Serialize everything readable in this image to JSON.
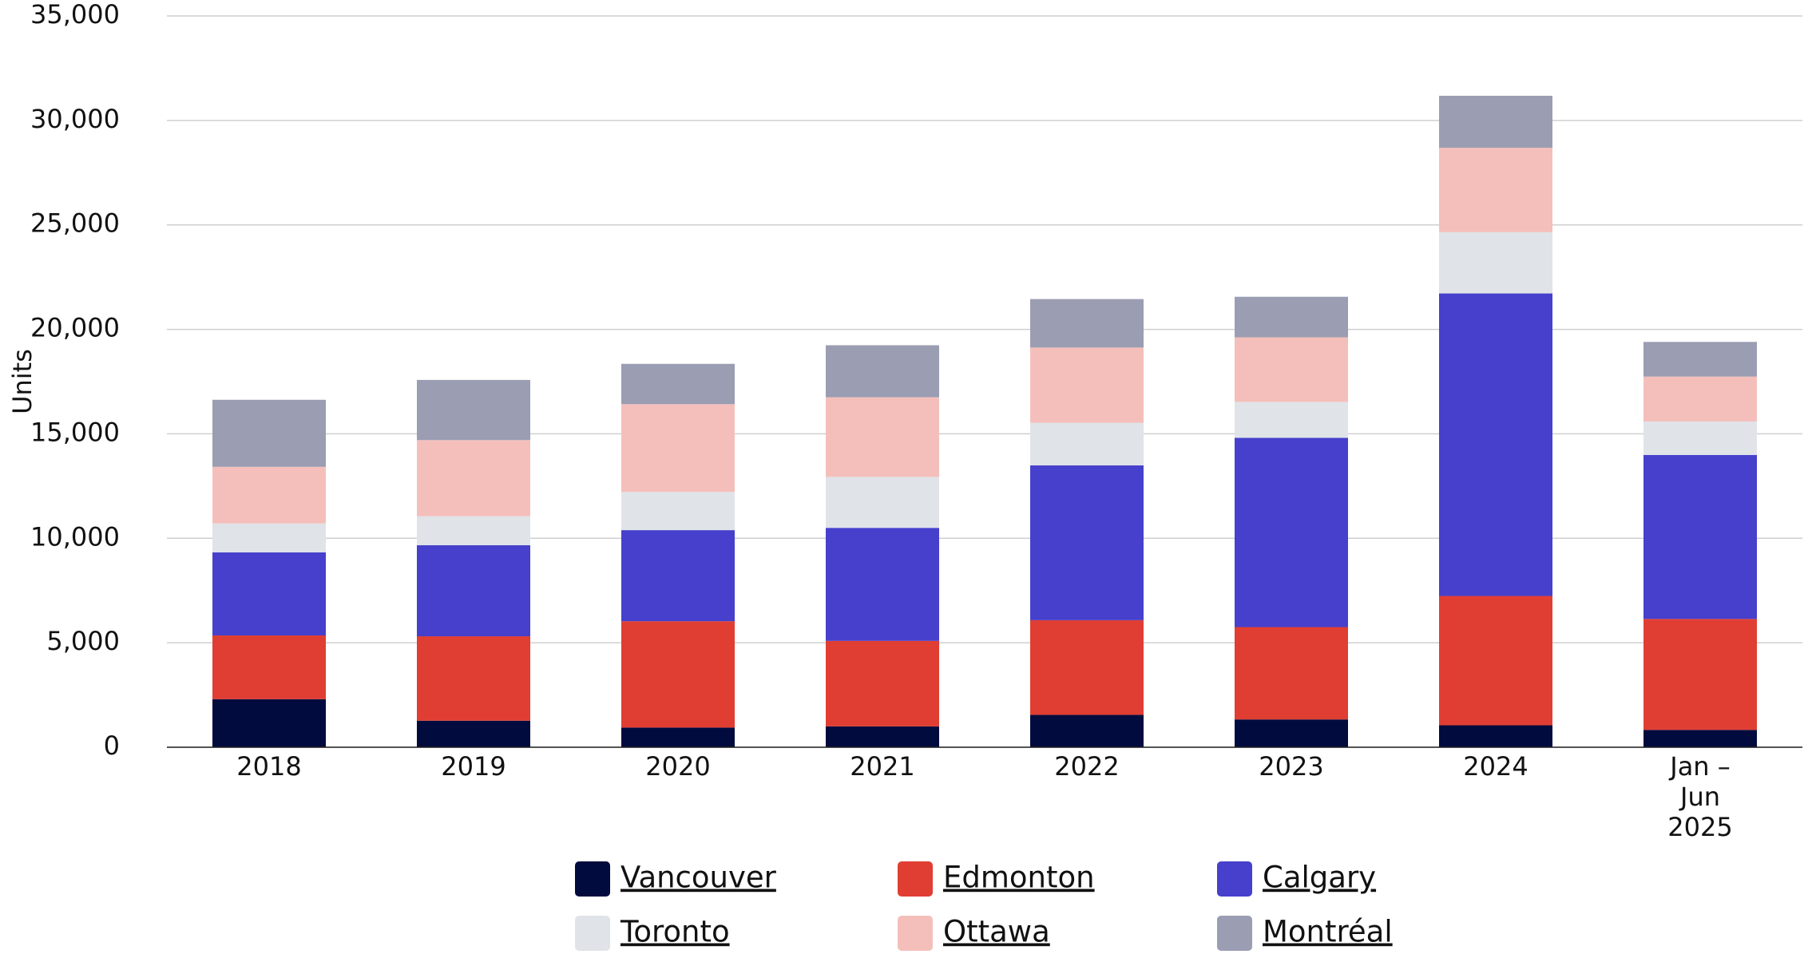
{
  "chart_data": {
    "type": "stacked_bar",
    "y_label": "Units",
    "categories": [
      "2018",
      "2019",
      "2020",
      "2021",
      "2022",
      "2023",
      "2024",
      "Jan – Jun 2025"
    ],
    "series": [
      {
        "name": "Vancouver",
        "color": "#020b3d",
        "values": [
          2300,
          1270,
          940,
          1000,
          1550,
          1330,
          1050,
          830
        ]
      },
      {
        "name": "Edmonton",
        "color": "#e03e33",
        "values": [
          3050,
          4040,
          5090,
          4090,
          4530,
          4420,
          6190,
          5310
        ]
      },
      {
        "name": "Calgary",
        "color": "#4640cc",
        "values": [
          3980,
          4360,
          4360,
          5410,
          7410,
          9060,
          14480,
          7850
        ]
      },
      {
        "name": "Toronto",
        "color": "#e0e3e8",
        "values": [
          1380,
          1390,
          1830,
          2440,
          2040,
          1720,
          2930,
          1600
        ]
      },
      {
        "name": "Ottawa",
        "color": "#f4bfbb",
        "values": [
          2710,
          3640,
          4200,
          3810,
          3600,
          3090,
          4040,
          2150
        ]
      },
      {
        "name": "Montréal",
        "color": "#9b9db2",
        "values": [
          3210,
          2880,
          1930,
          2490,
          2320,
          1940,
          2490,
          1660
        ]
      }
    ],
    "ylim": [
      0,
      35000
    ],
    "yticks": [
      0,
      {
        "value": 5000,
        "label": "5,000"
      },
      {
        "value": 10000,
        "label": "10,000"
      },
      {
        "value": 15000,
        "label": "15,000"
      },
      {
        "value": 20000,
        "label": "20,000"
      },
      {
        "value": 25000,
        "label": "25,000"
      },
      {
        "value": 30000,
        "label": "30,000"
      },
      {
        "value": 35000,
        "label": "35,000"
      }
    ],
    "grid": true,
    "legend": "bottom"
  }
}
